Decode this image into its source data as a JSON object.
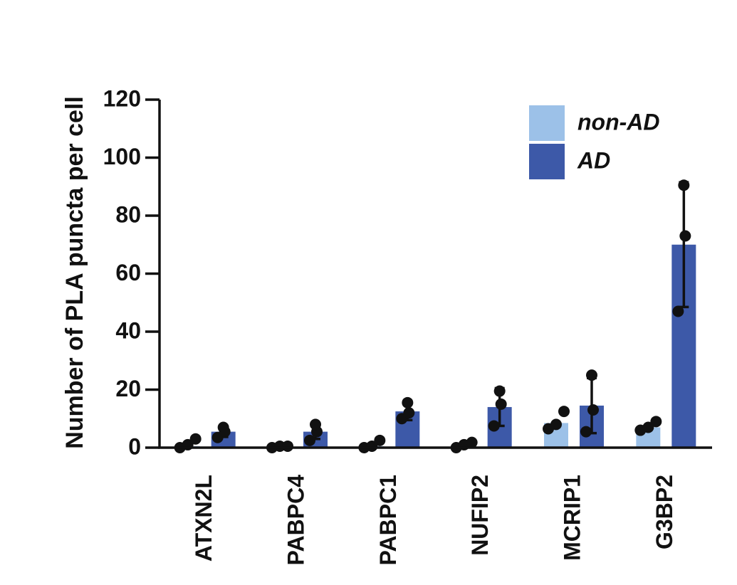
{
  "chart_data": {
    "type": "bar",
    "ylabel": "Number of PLA puncta per cell",
    "xlabel": "",
    "ylim": [
      0,
      120
    ],
    "yticks": [
      0,
      20,
      40,
      60,
      80,
      100,
      120
    ],
    "categories": [
      "ATXN2L",
      "PABPC4",
      "PABPC1",
      "NUFIP2",
      "MCRIP1",
      "G3BP2"
    ],
    "legend_position": "top-right",
    "grid": false,
    "series": [
      {
        "name": "non-AD",
        "color": "#9cc1e8",
        "values": [
          0.5,
          0.3,
          0.5,
          1.0,
          8.5,
          7.0
        ],
        "errors": [
          0,
          0,
          0,
          0,
          0,
          0
        ],
        "points": [
          [
            0,
            1,
            3
          ],
          [
            0,
            0.5,
            0.5
          ],
          [
            0,
            0.5,
            2.5
          ],
          [
            0,
            1,
            1.8
          ],
          [
            6.5,
            8,
            12.5
          ],
          [
            6,
            7,
            9
          ]
        ]
      },
      {
        "name": "AD",
        "color": "#3d59a8",
        "values": [
          5.5,
          5.5,
          12.5,
          14.0,
          14.5,
          70.0
        ],
        "errors": [
          1.8,
          2.5,
          3.0,
          6.5,
          9.5,
          21.5
        ],
        "points": [
          [
            3.5,
            5.5,
            7
          ],
          [
            2.5,
            5.5,
            8
          ],
          [
            10,
            12,
            15.5
          ],
          [
            7.5,
            15,
            19.5
          ],
          [
            5.5,
            13,
            25
          ],
          [
            47,
            73,
            90.5
          ]
        ]
      }
    ]
  }
}
